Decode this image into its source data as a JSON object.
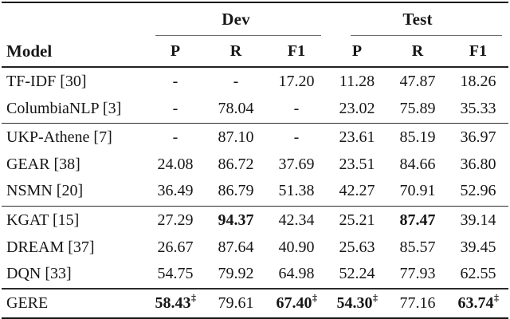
{
  "table": {
    "header": {
      "model_label": "Model",
      "groups": [
        {
          "label": "Dev",
          "cols": [
            "P",
            "R",
            "F1"
          ]
        },
        {
          "label": "Test",
          "cols": [
            "P",
            "R",
            "F1"
          ]
        }
      ]
    },
    "row_groups": [
      [
        {
          "model": "TF-IDF [30]",
          "cells": [
            {
              "v": "-"
            },
            {
              "v": "-"
            },
            {
              "v": "17.20"
            },
            {
              "v": "11.28"
            },
            {
              "v": "47.87"
            },
            {
              "v": "18.26"
            }
          ]
        },
        {
          "model": "ColumbiaNLP [3]",
          "cells": [
            {
              "v": "-"
            },
            {
              "v": "78.04"
            },
            {
              "v": "-"
            },
            {
              "v": "23.02"
            },
            {
              "v": "75.89"
            },
            {
              "v": "35.33"
            }
          ]
        }
      ],
      [
        {
          "model": "UKP-Athene [7]",
          "cells": [
            {
              "v": "-"
            },
            {
              "v": "87.10"
            },
            {
              "v": "-"
            },
            {
              "v": "23.61"
            },
            {
              "v": "85.19"
            },
            {
              "v": "36.97"
            }
          ]
        },
        {
          "model": "GEAR [38]",
          "cells": [
            {
              "v": "24.08"
            },
            {
              "v": "86.72"
            },
            {
              "v": "37.69"
            },
            {
              "v": "23.51"
            },
            {
              "v": "84.66"
            },
            {
              "v": "36.80"
            }
          ]
        },
        {
          "model": "NSMN [20]",
          "cells": [
            {
              "v": "36.49"
            },
            {
              "v": "86.79"
            },
            {
              "v": "51.38"
            },
            {
              "v": "42.27"
            },
            {
              "v": "70.91"
            },
            {
              "v": "52.96"
            }
          ]
        }
      ],
      [
        {
          "model": "KGAT [15]",
          "cells": [
            {
              "v": "27.29"
            },
            {
              "v": "94.37",
              "bold": true
            },
            {
              "v": "42.34"
            },
            {
              "v": "25.21"
            },
            {
              "v": "87.47",
              "bold": true
            },
            {
              "v": "39.14"
            }
          ]
        },
        {
          "model": "DREAM [37]",
          "cells": [
            {
              "v": "26.67"
            },
            {
              "v": "87.64"
            },
            {
              "v": "40.90"
            },
            {
              "v": "25.63"
            },
            {
              "v": "85.57"
            },
            {
              "v": "39.45"
            }
          ]
        },
        {
          "model": "DQN [33]",
          "cells": [
            {
              "v": "54.75"
            },
            {
              "v": "79.92"
            },
            {
              "v": "64.98"
            },
            {
              "v": "52.24"
            },
            {
              "v": "77.93"
            },
            {
              "v": "62.55"
            }
          ]
        }
      ],
      [
        {
          "model": "GERE",
          "cells": [
            {
              "v": "58.43",
              "bold": true,
              "sup": "‡"
            },
            {
              "v": "79.61"
            },
            {
              "v": "67.40",
              "bold": true,
              "sup": "‡"
            },
            {
              "v": "54.30",
              "bold": true,
              "sup": "‡"
            },
            {
              "v": "77.16"
            },
            {
              "v": "63.74",
              "bold": true,
              "sup": "‡"
            }
          ]
        }
      ]
    ]
  }
}
